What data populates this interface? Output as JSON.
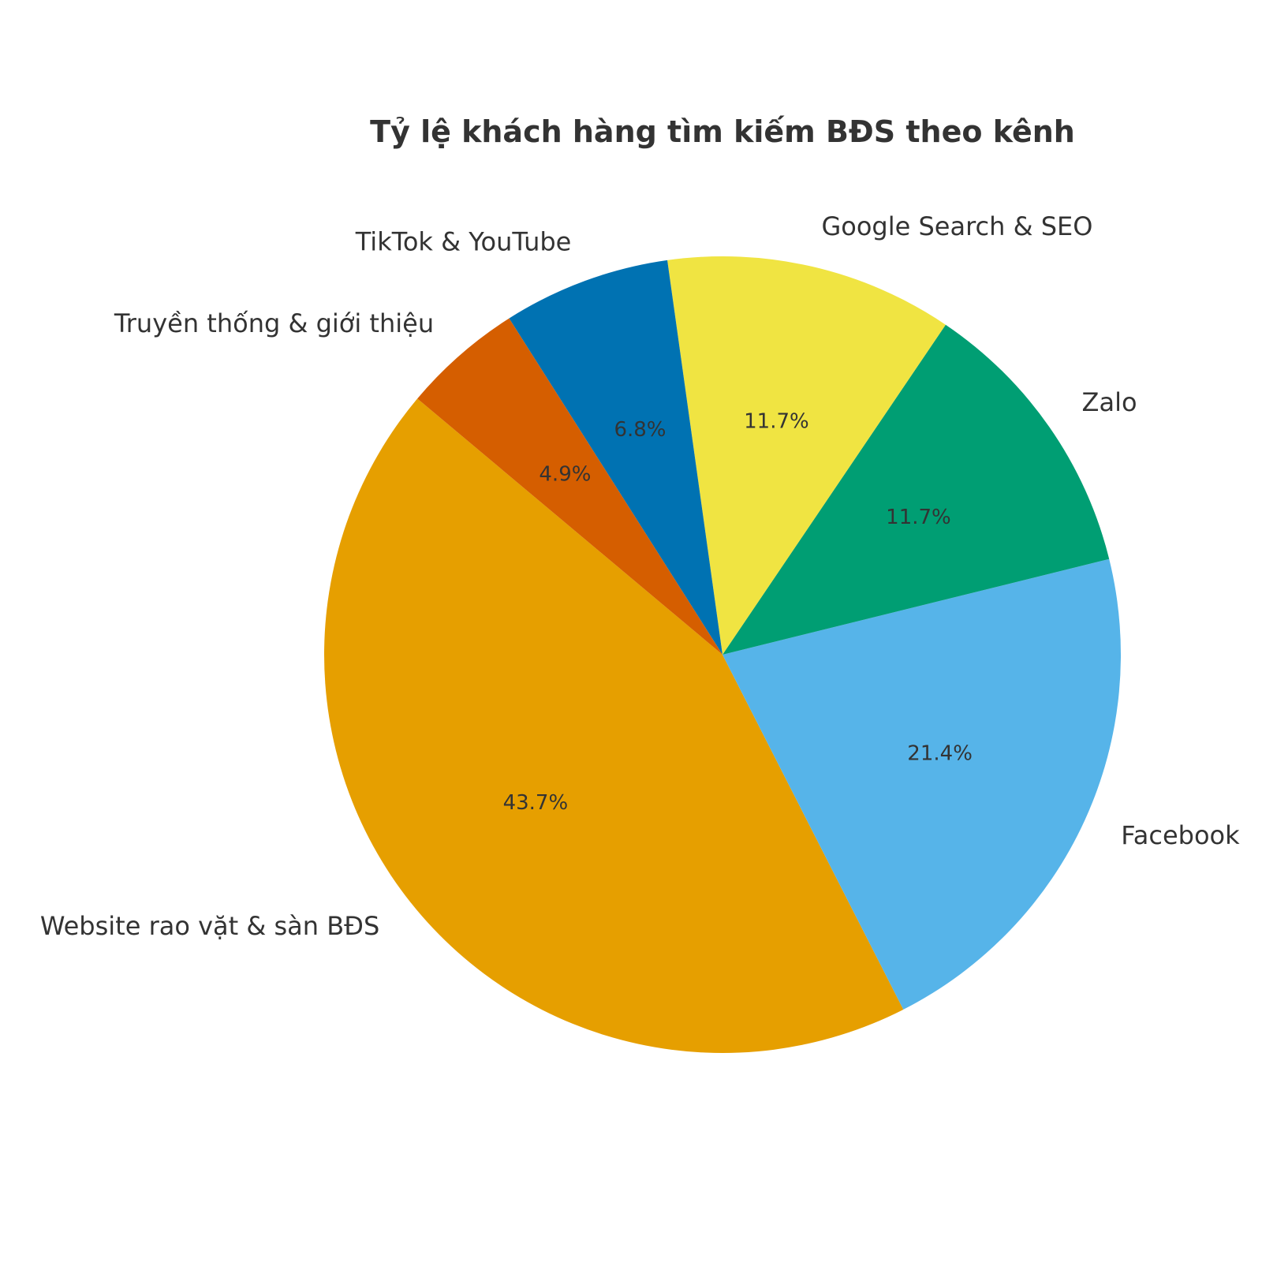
{
  "chart_data": {
    "type": "pie",
    "title": "Tỷ lệ khách hàng tìm kiếm BĐS theo kênh",
    "slices": [
      {
        "label": "Website rao vặt & sàn BĐS",
        "value": 43.7,
        "pct_label": "43.7%",
        "color": "#E69F00"
      },
      {
        "label": "Facebook",
        "value": 21.4,
        "pct_label": "21.4%",
        "color": "#56B4E9"
      },
      {
        "label": "Zalo",
        "value": 11.7,
        "pct_label": "11.7%",
        "color": "#009E73"
      },
      {
        "label": "Google Search & SEO",
        "value": 11.7,
        "pct_label": "11.7%",
        "color": "#F0E442"
      },
      {
        "label": "TikTok & YouTube",
        "value": 6.8,
        "pct_label": "6.8%",
        "color": "#0072B2"
      },
      {
        "label": "Truyền thống & giới thiệu",
        "value": 4.9,
        "pct_label": "4.9%",
        "color": "#D55E00"
      }
    ],
    "start_angle_deg": 140,
    "direction": "counterclockwise",
    "legend": "none"
  }
}
